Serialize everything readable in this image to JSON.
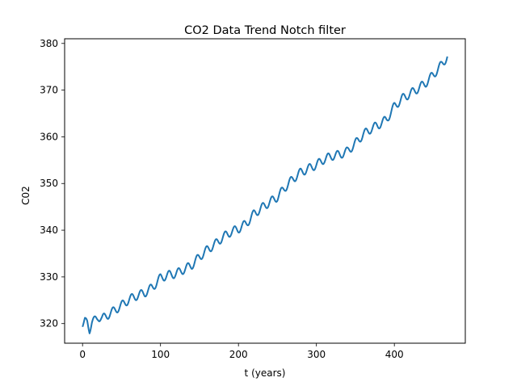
{
  "chart_data": {
    "type": "line",
    "title": "CO2 Data Trend Notch filter",
    "xlabel": "t (years)",
    "ylabel": "C02",
    "xlim": [
      -23,
      491
    ],
    "ylim": [
      315.8,
      381
    ],
    "xticks": [
      0,
      100,
      200,
      300,
      400
    ],
    "yticks": [
      320,
      330,
      340,
      350,
      360,
      370,
      380
    ],
    "grid": false,
    "line_color": "#1f77b4",
    "series": [
      {
        "trend_points": [
          [
            0,
            319.3
          ],
          [
            3,
            320.9
          ],
          [
            6,
            320.6
          ],
          [
            9,
            318.8
          ],
          [
            12,
            320.2
          ],
          [
            15,
            320.6
          ],
          [
            20,
            321.5
          ],
          [
            25,
            321.0
          ],
          [
            30,
            321.6
          ],
          [
            40,
            322.7
          ],
          [
            50,
            323.9
          ],
          [
            60,
            325.2
          ],
          [
            70,
            326.0
          ],
          [
            80,
            326.6
          ],
          [
            90,
            327.8
          ],
          [
            100,
            329.8
          ],
          [
            110,
            330.4
          ],
          [
            120,
            330.7
          ],
          [
            130,
            331.6
          ],
          [
            140,
            332.5
          ],
          [
            150,
            334.3
          ],
          [
            160,
            335.8
          ],
          [
            170,
            337.0
          ],
          [
            180,
            338.5
          ],
          [
            190,
            339.6
          ],
          [
            200,
            340.3
          ],
          [
            210,
            341.4
          ],
          [
            220,
            343.5
          ],
          [
            230,
            344.8
          ],
          [
            240,
            346.0
          ],
          [
            250,
            347.1
          ],
          [
            260,
            349.2
          ],
          [
            270,
            351.0
          ],
          [
            280,
            352.4
          ],
          [
            290,
            353.2
          ],
          [
            300,
            354.0
          ],
          [
            310,
            355.2
          ],
          [
            320,
            355.9
          ],
          [
            330,
            356.2
          ],
          [
            340,
            356.9
          ],
          [
            350,
            358.6
          ],
          [
            360,
            360.5
          ],
          [
            370,
            361.7
          ],
          [
            380,
            362.6
          ],
          [
            390,
            363.7
          ],
          [
            400,
            366.5
          ],
          [
            410,
            368.2
          ],
          [
            420,
            369.2
          ],
          [
            430,
            370.3
          ],
          [
            440,
            371.5
          ],
          [
            450,
            373.3
          ],
          [
            460,
            375.3
          ],
          [
            468,
            377.2
          ]
        ],
        "seasonal_amplitude": 0.9,
        "seasonal_period": 12
      }
    ]
  }
}
